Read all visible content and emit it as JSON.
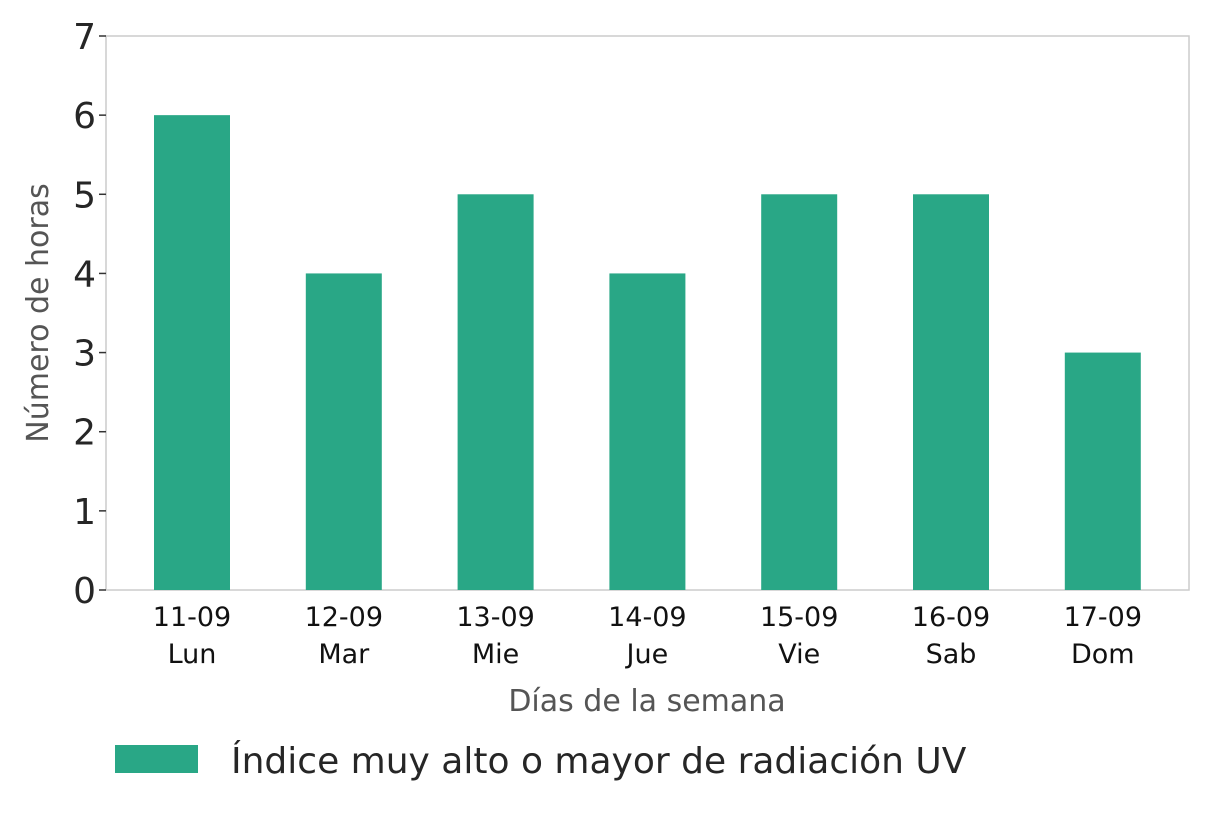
{
  "chart_data": {
    "type": "bar",
    "categories": [
      [
        "11-09",
        "Lun"
      ],
      [
        "12-09",
        "Mar"
      ],
      [
        "13-09",
        "Mie"
      ],
      [
        "14-09",
        "Jue"
      ],
      [
        "15-09",
        "Vie"
      ],
      [
        "16-09",
        "Sab"
      ],
      [
        "17-09",
        "Dom"
      ]
    ],
    "series": [
      {
        "name": "Índice muy alto o mayor de radiación UV",
        "values": [
          6,
          4,
          5,
          4,
          5,
          5,
          3
        ],
        "color": "#29a786"
      }
    ],
    "xlabel": "Días de la semana",
    "ylabel": "Número de horas",
    "ylim": [
      0,
      7
    ],
    "yticks": [
      "0",
      "1",
      "2",
      "3",
      "4",
      "5",
      "6",
      "7"
    ],
    "grid": false,
    "legend_position": "bottom"
  }
}
